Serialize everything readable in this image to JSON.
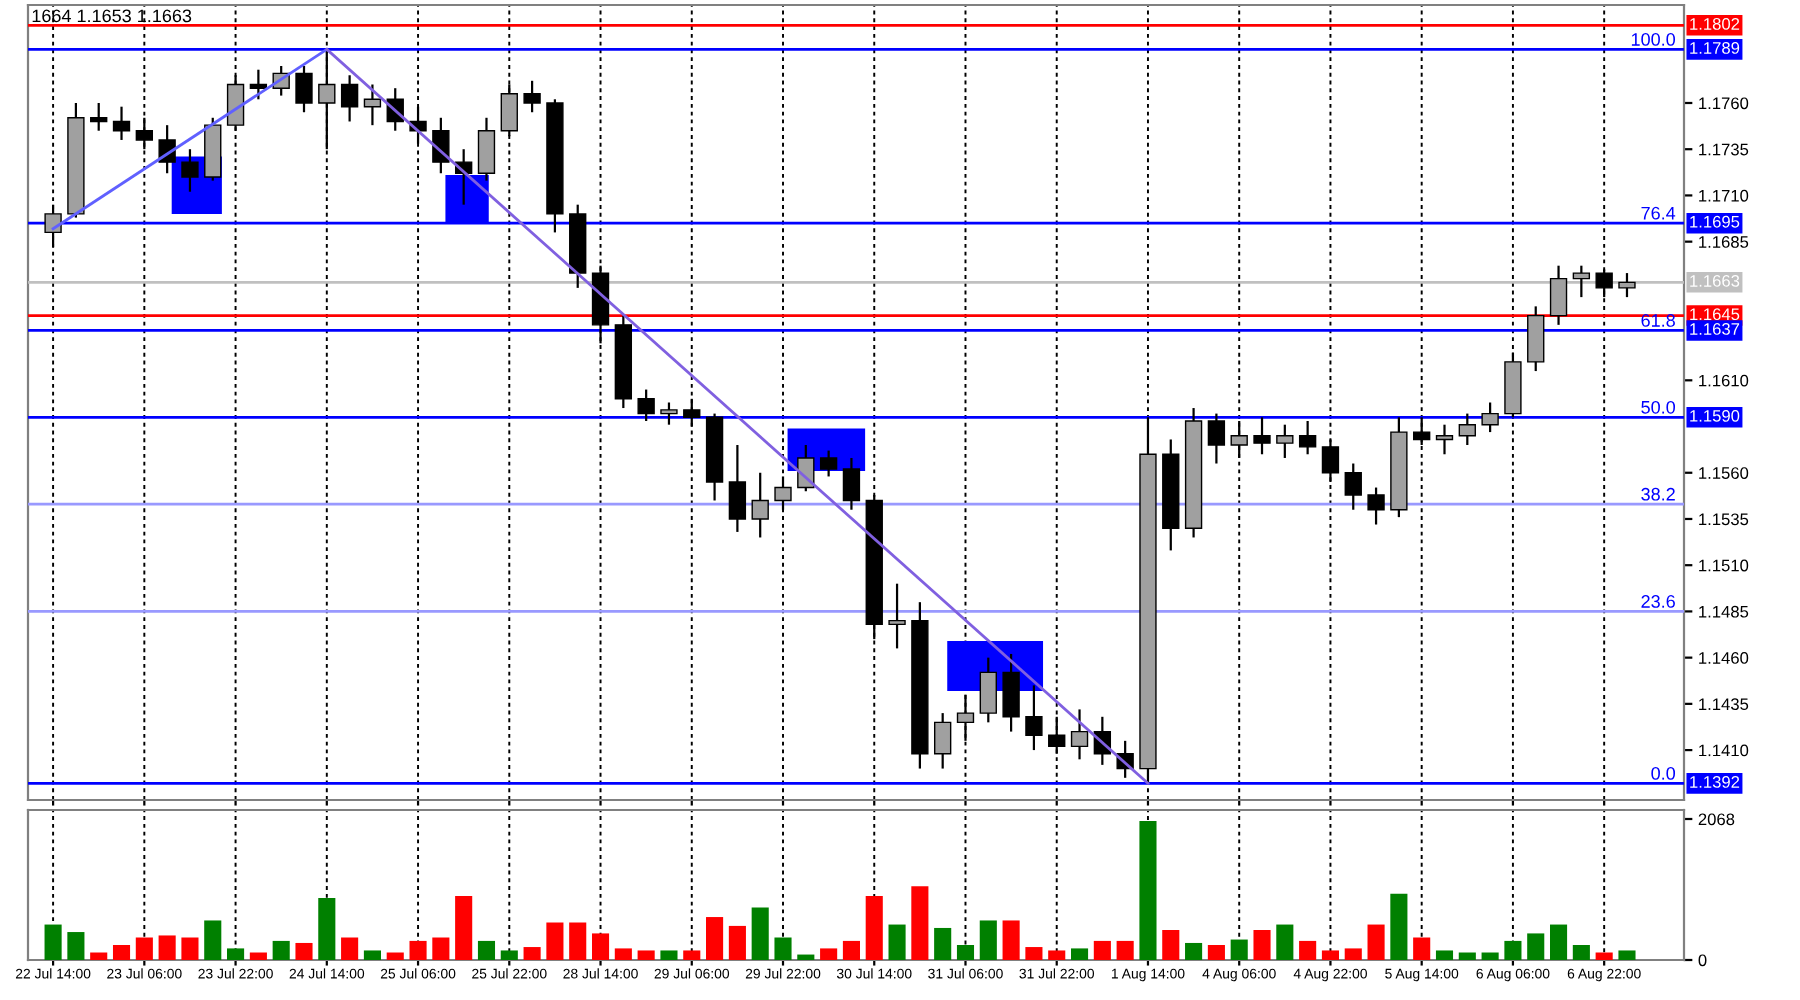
{
  "chart_data": [
    {
      "type": "candlestick",
      "categories": [
        "22 Jul 14:00",
        null,
        null,
        null,
        "23 Jul 06:00",
        null,
        null,
        null,
        "23 Jul 22:00",
        null,
        null,
        null,
        "24 Jul 14:00",
        null,
        null,
        null,
        "25 Jul 06:00",
        null,
        null,
        null,
        "25 Jul 22:00",
        null,
        null,
        null,
        "28 Jul 14:00",
        null,
        null,
        null,
        "29 Jul 06:00",
        null,
        null,
        null,
        "29 Jul 22:00",
        null,
        null,
        null,
        "30 Jul 14:00",
        null,
        null,
        null,
        "31 Jul 06:00",
        null,
        null,
        null,
        "31 Jul 22:00",
        null,
        null,
        null,
        "1 Aug 14:00",
        null,
        null,
        null,
        "4 Aug 06:00",
        null,
        null,
        null,
        "4 Aug 22:00",
        null,
        null,
        null,
        "5 Aug 14:00",
        null,
        null,
        null,
        "6 Aug 06:00",
        null,
        null,
        null,
        "6 Aug 22:00",
        null
      ],
      "series": [
        {
          "type": "candlestick",
          "ohlc": [
            [
              1.169,
              1.1705,
              1.1682,
              1.17
            ],
            [
              1.17,
              1.176,
              1.1698,
              1.1752
            ],
            [
              1.1752,
              1.176,
              1.1745,
              1.175
            ],
            [
              1.175,
              1.1758,
              1.174,
              1.1745
            ],
            [
              1.1745,
              1.1752,
              1.1735,
              1.174
            ],
            [
              1.174,
              1.1748,
              1.1722,
              1.1728
            ],
            [
              1.1728,
              1.1735,
              1.1712,
              1.172
            ],
            [
              1.172,
              1.1752,
              1.1718,
              1.1748
            ],
            [
              1.1748,
              1.1775,
              1.1745,
              1.177
            ],
            [
              1.177,
              1.1778,
              1.1762,
              1.1768
            ],
            [
              1.1768,
              1.178,
              1.1764,
              1.1776
            ],
            [
              1.1776,
              1.178,
              1.1755,
              1.176
            ],
            [
              1.176,
              1.1789,
              1.1735,
              1.177
            ],
            [
              1.177,
              1.1775,
              1.175,
              1.1758
            ],
            [
              1.1758,
              1.177,
              1.1748,
              1.1762
            ],
            [
              1.1762,
              1.1768,
              1.1745,
              1.175
            ],
            [
              1.175,
              1.1758,
              1.1738,
              1.1745
            ],
            [
              1.1745,
              1.1752,
              1.1722,
              1.1728
            ],
            [
              1.1728,
              1.1735,
              1.1705,
              1.1722
            ],
            [
              1.1722,
              1.1752,
              1.1718,
              1.1745
            ],
            [
              1.1745,
              1.177,
              1.1742,
              1.1765
            ],
            [
              1.1765,
              1.1772,
              1.1755,
              1.176
            ],
            [
              1.176,
              1.1762,
              1.169,
              1.17
            ],
            [
              1.17,
              1.1705,
              1.166,
              1.1668
            ],
            [
              1.1668,
              1.1672,
              1.163,
              1.164
            ],
            [
              1.164,
              1.1645,
              1.1595,
              1.16
            ],
            [
              1.16,
              1.1605,
              1.1588,
              1.1592
            ],
            [
              1.1592,
              1.1598,
              1.1586,
              1.1594
            ],
            [
              1.1594,
              1.16,
              1.1585,
              1.159
            ],
            [
              1.159,
              1.1592,
              1.1545,
              1.1555
            ],
            [
              1.1555,
              1.1575,
              1.1528,
              1.1535
            ],
            [
              1.1535,
              1.156,
              1.1525,
              1.1545
            ],
            [
              1.1545,
              1.1558,
              1.154,
              1.1552
            ],
            [
              1.1552,
              1.1575,
              1.155,
              1.1568
            ],
            [
              1.1568,
              1.1572,
              1.1558,
              1.1562
            ],
            [
              1.1562,
              1.1568,
              1.154,
              1.1545
            ],
            [
              1.1545,
              1.1548,
              1.147,
              1.1478
            ],
            [
              1.1478,
              1.15,
              1.1465,
              1.148
            ],
            [
              1.148,
              1.149,
              1.14,
              1.1408
            ],
            [
              1.1408,
              1.143,
              1.14,
              1.1425
            ],
            [
              1.1425,
              1.144,
              1.1415,
              1.143
            ],
            [
              1.143,
              1.146,
              1.1425,
              1.1452
            ],
            [
              1.1452,
              1.1462,
              1.142,
              1.1428
            ],
            [
              1.1428,
              1.1445,
              1.141,
              1.1418
            ],
            [
              1.1418,
              1.1428,
              1.1408,
              1.1412
            ],
            [
              1.1412,
              1.1432,
              1.1405,
              1.142
            ],
            [
              1.142,
              1.1428,
              1.1402,
              1.1408
            ],
            [
              1.1408,
              1.1415,
              1.1395,
              1.14
            ],
            [
              1.14,
              1.159,
              1.1392,
              1.157
            ],
            [
              1.157,
              1.1578,
              1.1518,
              1.153
            ],
            [
              1.153,
              1.1595,
              1.1525,
              1.1588
            ],
            [
              1.1588,
              1.1592,
              1.1565,
              1.1575
            ],
            [
              1.1575,
              1.1588,
              1.1568,
              1.158
            ],
            [
              1.158,
              1.159,
              1.157,
              1.1576
            ],
            [
              1.1576,
              1.1586,
              1.1568,
              1.158
            ],
            [
              1.158,
              1.1588,
              1.157,
              1.1574
            ],
            [
              1.1574,
              1.1578,
              1.1555,
              1.156
            ],
            [
              1.156,
              1.1565,
              1.154,
              1.1548
            ],
            [
              1.1548,
              1.1552,
              1.1532,
              1.154
            ],
            [
              1.154,
              1.159,
              1.1536,
              1.1582
            ],
            [
              1.1582,
              1.159,
              1.1575,
              1.1578
            ],
            [
              1.1578,
              1.1586,
              1.157,
              1.158
            ],
            [
              1.158,
              1.1592,
              1.1575,
              1.1586
            ],
            [
              1.1586,
              1.1598,
              1.1582,
              1.1592
            ],
            [
              1.1592,
              1.1625,
              1.159,
              1.162
            ],
            [
              1.162,
              1.165,
              1.1615,
              1.1645
            ],
            [
              1.1645,
              1.1672,
              1.164,
              1.1665
            ],
            [
              1.1665,
              1.1672,
              1.1655,
              1.1668
            ],
            [
              1.1668,
              1.167,
              1.1655,
              1.166
            ],
            [
              1.166,
              1.1668,
              1.1655,
              1.1663
            ]
          ],
          "colors": [
            "#a0a0a0",
            "#a0a0a0",
            "#000000",
            "#000000",
            "#000000",
            "#000000",
            "#000000",
            "#a0a0a0",
            "#a0a0a0",
            "#000000",
            "#a0a0a0",
            "#000000",
            "#a0a0a0",
            "#000000",
            "#a0a0a0",
            "#000000",
            "#000000",
            "#000000",
            "#000000",
            "#a0a0a0",
            "#a0a0a0",
            "#000000",
            "#000000",
            "#000000",
            "#000000",
            "#000000",
            "#000000",
            "#a0a0a0",
            "#000000",
            "#000000",
            "#000000",
            "#a0a0a0",
            "#a0a0a0",
            "#a0a0a0",
            "#000000",
            "#000000",
            "#000000",
            "#a0a0a0",
            "#000000",
            "#a0a0a0",
            "#a0a0a0",
            "#a0a0a0",
            "#000000",
            "#000000",
            "#000000",
            "#a0a0a0",
            "#000000",
            "#000000",
            "#a0a0a0",
            "#000000",
            "#a0a0a0",
            "#000000",
            "#a0a0a0",
            "#000000",
            "#a0a0a0",
            "#000000",
            "#000000",
            "#000000",
            "#000000",
            "#a0a0a0",
            "#000000",
            "#a0a0a0",
            "#a0a0a0",
            "#a0a0a0",
            "#a0a0a0",
            "#a0a0a0",
            "#a0a0a0",
            "#a0a0a0",
            "#000000",
            "#a0a0a0"
          ]
        },
        {
          "type": "line",
          "x": [
            "22 Jul 14:00",
            "24 Jul 14:00"
          ],
          "values": [
            1.1692,
            1.1789
          ],
          "color": "#6060ff"
        },
        {
          "type": "line",
          "x": [
            "24 Jul 14:00",
            "1 Aug 14:00"
          ],
          "values": [
            1.1789,
            1.1392
          ],
          "color": "#8060e0"
        }
      ],
      "ylim": [
        1.1383,
        1.1813
      ],
      "yticks": [
        {
          "value": 1.141,
          "label": "1.1410"
        },
        1.1435,
        {
          "value": 1.146,
          "label": "1.1460"
        },
        1.1485,
        {
          "value": 1.151,
          "label": "1.1510"
        },
        1.1535,
        {
          "value": 1.156,
          "label": "1.1560"
        },
        {
          "value": 1.161,
          "label": "1.1610"
        },
        1.1685,
        {
          "value": 1.171,
          "label": "1.1710"
        },
        1.1735,
        {
          "value": 1.176,
          "label": "1.1760"
        }
      ],
      "ref_lines": [
        {
          "axis": "y",
          "value": 1.1802,
          "label": "1.1802",
          "color": "#ff0000"
        },
        {
          "axis": "y",
          "value": 1.1789,
          "label": "1.1789",
          "color": "#0000ff"
        },
        {
          "axis": "y",
          "value": 1.1695,
          "label": "1.1695",
          "color": "#0000ff"
        },
        {
          "axis": "y",
          "value": 1.1663,
          "label": "1.1663",
          "color": "#c0c0c0"
        },
        {
          "axis": "y",
          "value": 1.1645,
          "label": "1.1645",
          "color": "#ff0000"
        },
        {
          "axis": "y",
          "value": 1.1637,
          "label": "1.1637",
          "color": "#0000ff"
        },
        {
          "axis": "y",
          "value": 1.159,
          "label": "1.1590",
          "color": "#0000ff"
        },
        {
          "axis": "y",
          "value": 1.1543,
          "label": null,
          "color": "#9999ff"
        },
        {
          "axis": "y",
          "value": 1.1485,
          "label": null,
          "color": "#9999ff"
        },
        {
          "axis": "y",
          "value": 1.1392,
          "label": "1.1392",
          "color": "#0000ff"
        }
      ],
      "annotations": [
        "1664 1.1653 1.1663",
        {
          "text": "100.0",
          "y": 1.1789
        },
        {
          "text": "76.4",
          "y": 1.1695
        },
        {
          "text": "61.8",
          "y": 1.1637
        },
        {
          "text": "50.0",
          "y": 1.159
        },
        {
          "text": "38.2",
          "y": 1.1543
        },
        {
          "text": "23.6",
          "y": 1.1485
        },
        {
          "text": "0.0",
          "y": 1.1392
        }
      ],
      "grid": "x",
      "tick_labels": "y"
    },
    {
      "type": "bar",
      "categories": [
        "22 Jul 14:00",
        null,
        null,
        null,
        "23 Jul 06:00",
        null,
        null,
        null,
        "23 Jul 22:00",
        null,
        null,
        null,
        "24 Jul 14:00",
        null,
        null,
        null,
        "25 Jul 06:00",
        null,
        null,
        null,
        "25 Jul 22:00",
        null,
        null,
        null,
        "28 Jul 14:00",
        null,
        null,
        null,
        "29 Jul 06:00",
        null,
        null,
        null,
        "29 Jul 22:00",
        null,
        null,
        null,
        "30 Jul 14:00",
        null,
        null,
        null,
        "31 Jul 06:00",
        null,
        null,
        null,
        "31 Jul 22:00",
        null,
        null,
        null,
        "1 Aug 14:00",
        null,
        null,
        null,
        "4 Aug 06:00",
        null,
        null,
        null,
        "4 Aug 22:00",
        null,
        null,
        null,
        "5 Aug 14:00",
        null,
        null,
        null,
        "6 Aug 06:00",
        null,
        null,
        null,
        "6 Aug 22:00",
        null
      ],
      "values": [
        520,
        410,
        110,
        220,
        330,
        360,
        330,
        580,
        170,
        110,
        280,
        250,
        910,
        330,
        140,
        110,
        280,
        330,
        940,
        280,
        140,
        190,
        550,
        550,
        390,
        170,
        140,
        140,
        140,
        630,
        500,
        770,
        330,
        80,
        170,
        280,
        940,
        520,
        1080,
        470,
        220,
        580,
        580,
        190,
        140,
        170,
        280,
        280,
        2040,
        440,
        250,
        220,
        300,
        440,
        520,
        280,
        140,
        170,
        520,
        970,
        330,
        140,
        110,
        110,
        280,
        390,
        520,
        220,
        110,
        140
      ],
      "colors": [
        "#008000",
        "#008000",
        "#ff0000",
        "#ff0000",
        "#ff0000",
        "#ff0000",
        "#ff0000",
        "#008000",
        "#008000",
        "#ff0000",
        "#008000",
        "#ff0000",
        "#008000",
        "#ff0000",
        "#008000",
        "#ff0000",
        "#ff0000",
        "#ff0000",
        "#ff0000",
        "#008000",
        "#008000",
        "#ff0000",
        "#ff0000",
        "#ff0000",
        "#ff0000",
        "#ff0000",
        "#ff0000",
        "#008000",
        "#ff0000",
        "#ff0000",
        "#ff0000",
        "#008000",
        "#008000",
        "#008000",
        "#ff0000",
        "#ff0000",
        "#ff0000",
        "#008000",
        "#ff0000",
        "#008000",
        "#008000",
        "#008000",
        "#ff0000",
        "#ff0000",
        "#ff0000",
        "#008000",
        "#ff0000",
        "#ff0000",
        "#008000",
        "#ff0000",
        "#008000",
        "#ff0000",
        "#008000",
        "#ff0000",
        "#008000",
        "#ff0000",
        "#ff0000",
        "#ff0000",
        "#ff0000",
        "#008000",
        "#ff0000",
        "#008000",
        "#008000",
        "#008000",
        "#008000",
        "#008000",
        "#008000",
        "#008000",
        "#ff0000",
        "#008000"
      ],
      "ylim": [
        0,
        2200
      ],
      "yticks": [
        0,
        2068
      ],
      "grid": "x"
    }
  ]
}
